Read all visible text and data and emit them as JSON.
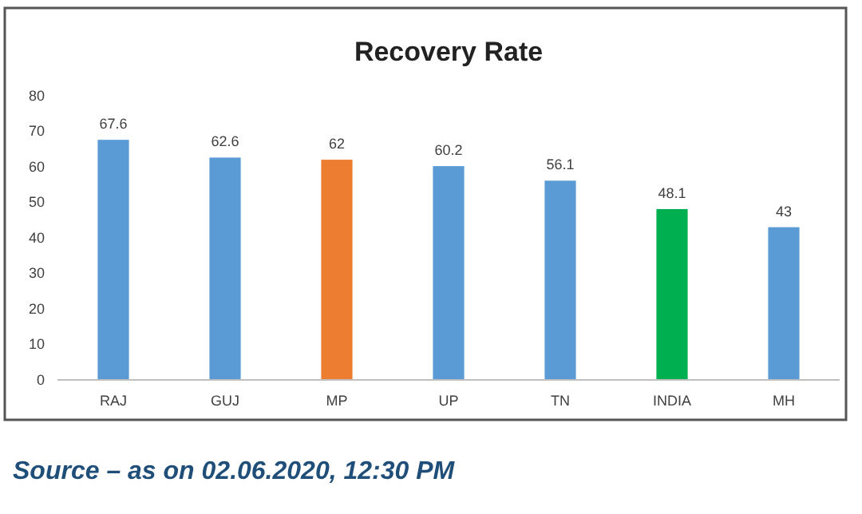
{
  "chart_data": {
    "type": "bar",
    "title": "Recovery Rate",
    "categories": [
      "RAJ",
      "GUJ",
      "MP",
      "UP",
      "TN",
      "INDIA",
      "MH"
    ],
    "values": [
      67.6,
      62.6,
      62,
      60.2,
      56.1,
      48.1,
      43
    ],
    "colors": [
      "#5b9bd5",
      "#5b9bd5",
      "#ed7d31",
      "#5b9bd5",
      "#5b9bd5",
      "#00b050",
      "#5b9bd5"
    ],
    "ylim": [
      0,
      80
    ],
    "yticks": [
      0,
      10,
      20,
      30,
      40,
      50,
      60,
      70,
      80
    ],
    "data_labels": true,
    "grid": false,
    "annotations": [
      "Source – as on 02.06.2020, 12:30 PM"
    ]
  }
}
